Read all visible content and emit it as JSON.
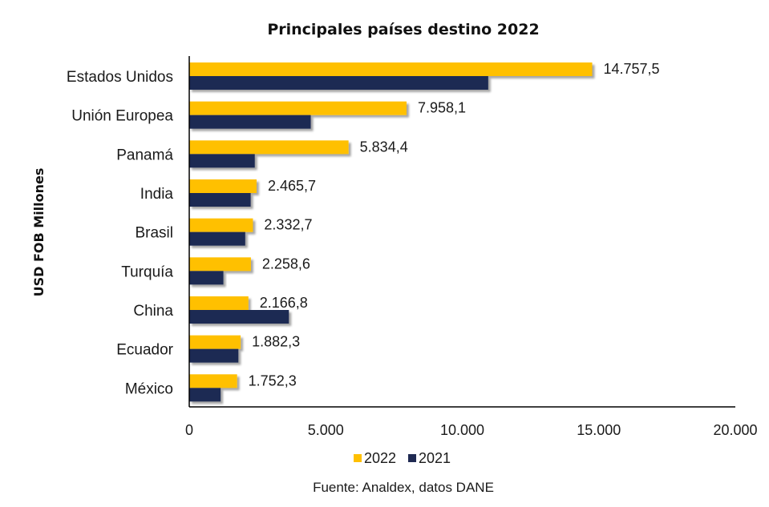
{
  "chart_data": {
    "type": "bar",
    "orientation": "horizontal",
    "title": "Principales países destino 2022",
    "ylabel": "USD FOB Millones",
    "xlabel": "",
    "xlim": [
      0,
      20000
    ],
    "xticks": [
      0,
      5000,
      10000,
      15000,
      20000
    ],
    "xtick_labels": [
      "0",
      "5.000",
      "10.000",
      "15.000",
      "20.000"
    ],
    "categories": [
      "Estados Unidos",
      "Unión Europea",
      "Panamá",
      "India",
      "Brasil",
      "Turquía",
      "China",
      "Ecuador",
      "México"
    ],
    "series": [
      {
        "name": "2022",
        "color": "#FFC000",
        "values": [
          14757.5,
          7958.1,
          5834.4,
          2465.7,
          2332.7,
          2258.6,
          2166.8,
          1882.3,
          1752.3
        ],
        "data_labels": [
          "14.757,5",
          "7.958,1",
          "5.834,4",
          "2.465,7",
          "2.332,7",
          "2.258,6",
          "2.166,8",
          "1.882,3",
          "1.752,3"
        ]
      },
      {
        "name": "2021",
        "color": "#1F2A52",
        "values": [
          10950,
          4450,
          2400,
          2250,
          2050,
          1250,
          3650,
          1800,
          1150
        ]
      }
    ],
    "grid": false,
    "legend": "bottom-center",
    "source": "Fuente: Analdex, datos DANE"
  }
}
